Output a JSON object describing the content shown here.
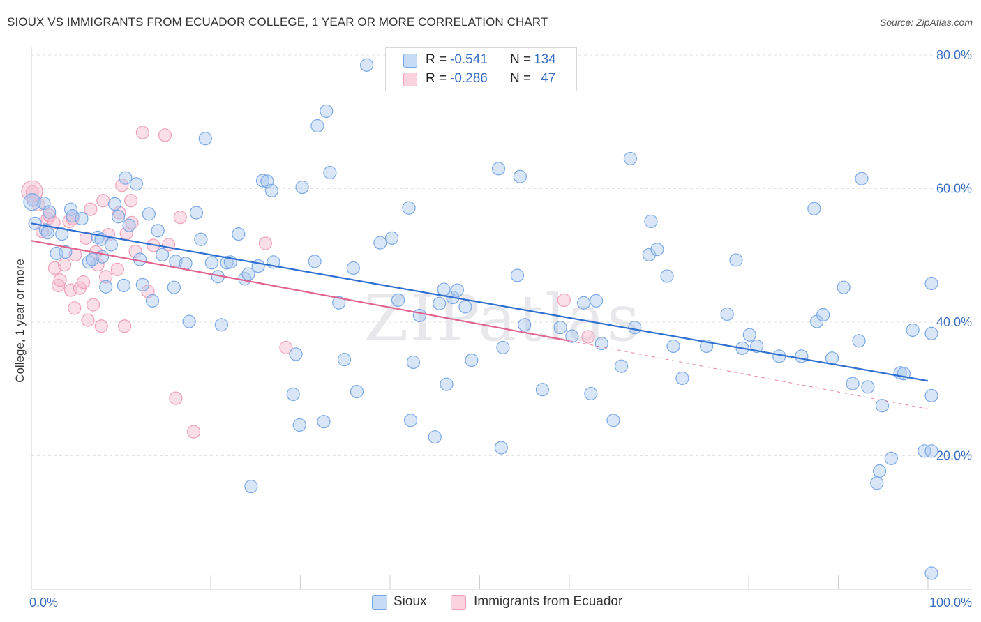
{
  "title": "SIOUX VS IMMIGRANTS FROM ECUADOR COLLEGE, 1 YEAR OR MORE CORRELATION CHART",
  "source": "Source: ZipAtlas.com",
  "watermark": "ZIPatlas",
  "legend": {
    "rows": [
      {
        "r_label": "R =",
        "r_value": "-0.541",
        "n_label": "N =",
        "n_value": "134",
        "color": "#a8c8f0"
      },
      {
        "r_label": "R =",
        "r_value": "-0.286",
        "n_label": "N =",
        "n_value": "47",
        "color": "#f5b8cb"
      }
    ]
  },
  "bottom_legend": [
    {
      "label": "Sioux",
      "color": "#a8c8f0"
    },
    {
      "label": "Immigrants from Ecuador",
      "color": "#f5b8cb"
    }
  ],
  "chart_data": {
    "type": "scatter",
    "title": "SIOUX VS IMMIGRANTS FROM ECUADOR COLLEGE, 1 YEAR OR MORE CORRELATION CHART",
    "xlabel": "",
    "ylabel": "College, 1 year or more",
    "x_ticks": [
      "0.0%",
      "100.0%"
    ],
    "y_ticks": [
      "20.0%",
      "40.0%",
      "60.0%",
      "80.0%"
    ],
    "xlim": [
      0,
      100
    ],
    "ylim": [
      0,
      82
    ],
    "grid": true,
    "legend_position": "top-center",
    "series": [
      {
        "name": "Sioux",
        "color": "#7aa8e6",
        "trend": {
          "x0": 0,
          "y0": 54.8,
          "x1": 100,
          "y1": 31.2,
          "color": "#2f6fd0"
        },
        "points": [
          [
            0.2,
            58.3
          ],
          [
            0.4,
            54.8
          ],
          [
            1.4,
            57.8
          ],
          [
            1.6,
            53.8
          ],
          [
            1.8,
            53.4
          ],
          [
            2.0,
            56.5
          ],
          [
            2.8,
            50.3
          ],
          [
            3.4,
            53.2
          ],
          [
            3.8,
            50.5
          ],
          [
            4.4,
            56.9
          ],
          [
            4.6,
            55.9
          ],
          [
            5.6,
            55.5
          ],
          [
            6.4,
            49.0
          ],
          [
            6.8,
            49.4
          ],
          [
            7.4,
            52.7
          ],
          [
            7.8,
            52.4
          ],
          [
            7.9,
            49.8
          ],
          [
            8.3,
            45.3
          ],
          [
            8.9,
            51.6
          ],
          [
            9.3,
            57.7
          ],
          [
            9.7,
            55.8
          ],
          [
            10.3,
            45.5
          ],
          [
            10.5,
            61.6
          ],
          [
            10.9,
            54.5
          ],
          [
            11.7,
            60.7
          ],
          [
            12.1,
            49.4
          ],
          [
            12.4,
            45.6
          ],
          [
            13.1,
            56.2
          ],
          [
            13.5,
            43.2
          ],
          [
            14.1,
            53.7
          ],
          [
            14.6,
            50.1
          ],
          [
            15.9,
            45.2
          ],
          [
            16.1,
            49.1
          ],
          [
            17.2,
            48.8
          ],
          [
            17.6,
            40.1
          ],
          [
            18.4,
            56.4
          ],
          [
            18.9,
            52.4
          ],
          [
            19.4,
            67.5
          ],
          [
            20.1,
            48.9
          ],
          [
            20.8,
            46.8
          ],
          [
            21.2,
            39.6
          ],
          [
            21.8,
            48.9
          ],
          [
            22.2,
            49.0
          ],
          [
            23.1,
            53.2
          ],
          [
            23.8,
            46.5
          ],
          [
            24.2,
            47.2
          ],
          [
            24.5,
            15.4
          ],
          [
            25.3,
            48.4
          ],
          [
            25.8,
            61.2
          ],
          [
            26.3,
            61.1
          ],
          [
            26.8,
            59.7
          ],
          [
            27.0,
            49.0
          ],
          [
            29.2,
            29.2
          ],
          [
            29.5,
            35.2
          ],
          [
            29.9,
            24.6
          ],
          [
            30.2,
            60.2
          ],
          [
            31.6,
            49.1
          ],
          [
            31.9,
            69.4
          ],
          [
            32.6,
            25.1
          ],
          [
            32.9,
            71.6
          ],
          [
            33.3,
            62.4
          ],
          [
            34.3,
            42.9
          ],
          [
            34.9,
            34.4
          ],
          [
            35.9,
            48.1
          ],
          [
            36.3,
            29.6
          ],
          [
            37.4,
            78.5
          ],
          [
            38.9,
            51.9
          ],
          [
            40.2,
            52.6
          ],
          [
            40.9,
            43.3
          ],
          [
            42.1,
            57.1
          ],
          [
            42.3,
            25.3
          ],
          [
            42.6,
            34.0
          ],
          [
            43.3,
            41.0
          ],
          [
            45.0,
            22.8
          ],
          [
            45.5,
            42.8
          ],
          [
            46.0,
            44.9
          ],
          [
            46.3,
            30.7
          ],
          [
            47.0,
            43.7
          ],
          [
            47.5,
            44.8
          ],
          [
            48.4,
            42.3
          ],
          [
            49.1,
            34.3
          ],
          [
            52.1,
            63.0
          ],
          [
            52.4,
            21.2
          ],
          [
            52.6,
            36.2
          ],
          [
            54.2,
            47.0
          ],
          [
            54.5,
            61.8
          ],
          [
            55.0,
            39.6
          ],
          [
            57.0,
            29.9
          ],
          [
            59.0,
            39.2
          ],
          [
            60.3,
            37.9
          ],
          [
            61.6,
            42.9
          ],
          [
            62.4,
            29.3
          ],
          [
            63.6,
            36.8
          ],
          [
            64.9,
            25.3
          ],
          [
            65.8,
            33.4
          ],
          [
            66.8,
            64.5
          ],
          [
            67.3,
            39.2
          ],
          [
            68.9,
            50.1
          ],
          [
            69.1,
            55.1
          ],
          [
            69.8,
            50.9
          ],
          [
            70.9,
            46.9
          ],
          [
            71.6,
            36.4
          ],
          [
            72.6,
            31.6
          ],
          [
            75.3,
            36.4
          ],
          [
            77.6,
            41.2
          ],
          [
            78.6,
            49.3
          ],
          [
            79.3,
            36.1
          ],
          [
            80.1,
            38.1
          ],
          [
            80.9,
            36.4
          ],
          [
            83.4,
            34.9
          ],
          [
            85.9,
            34.9
          ],
          [
            87.3,
            57.0
          ],
          [
            87.6,
            40.1
          ],
          [
            88.3,
            41.1
          ],
          [
            89.3,
            34.6
          ],
          [
            90.6,
            45.2
          ],
          [
            91.6,
            30.8
          ],
          [
            92.3,
            37.2
          ],
          [
            92.6,
            61.5
          ],
          [
            93.3,
            30.3
          ],
          [
            94.3,
            15.9
          ],
          [
            94.6,
            17.7
          ],
          [
            94.9,
            27.5
          ],
          [
            95.9,
            19.6
          ],
          [
            96.9,
            32.4
          ],
          [
            97.3,
            32.3
          ],
          [
            98.3,
            38.8
          ],
          [
            99.6,
            20.7
          ],
          [
            100.9,
            20.7
          ],
          [
            101.3,
            38.3
          ],
          [
            102.3,
            2.4
          ],
          [
            102.6,
            45.8
          ],
          [
            103.0,
            29.0
          ],
          [
            63.0,
            43.2
          ]
        ]
      },
      {
        "name": "Immigrants from Ecuador",
        "color": "#f0a0b8",
        "trend": {
          "x0": 0,
          "y0": 52.2,
          "x1": 60,
          "y1": 37.2,
          "x2": 100,
          "y2": 27.0,
          "color": "#e0628f"
        },
        "points": [
          [
            0.1,
            59.5
          ],
          [
            0.8,
            57.6
          ],
          [
            1.2,
            53.6
          ],
          [
            1.8,
            55.5
          ],
          [
            2.0,
            56.0
          ],
          [
            2.5,
            54.9
          ],
          [
            2.6,
            48.1
          ],
          [
            3.0,
            45.5
          ],
          [
            3.2,
            46.3
          ],
          [
            3.7,
            48.6
          ],
          [
            4.2,
            55.1
          ],
          [
            4.4,
            44.8
          ],
          [
            4.6,
            55.5
          ],
          [
            4.8,
            42.1
          ],
          [
            4.9,
            50.1
          ],
          [
            5.4,
            45.1
          ],
          [
            5.8,
            46.0
          ],
          [
            6.1,
            52.6
          ],
          [
            6.3,
            40.3
          ],
          [
            6.6,
            56.9
          ],
          [
            6.9,
            42.6
          ],
          [
            7.2,
            50.5
          ],
          [
            7.4,
            48.6
          ],
          [
            7.8,
            39.4
          ],
          [
            8.0,
            58.2
          ],
          [
            8.3,
            46.8
          ],
          [
            8.6,
            53.1
          ],
          [
            9.6,
            47.9
          ],
          [
            9.8,
            56.4
          ],
          [
            10.1,
            60.5
          ],
          [
            10.4,
            39.4
          ],
          [
            10.6,
            53.3
          ],
          [
            11.1,
            58.2
          ],
          [
            11.2,
            54.9
          ],
          [
            11.6,
            50.6
          ],
          [
            12.4,
            68.4
          ],
          [
            13.0,
            44.6
          ],
          [
            13.6,
            51.5
          ],
          [
            14.9,
            68.0
          ],
          [
            15.3,
            51.6
          ],
          [
            16.1,
            28.6
          ],
          [
            16.6,
            55.7
          ],
          [
            18.1,
            23.6
          ],
          [
            26.1,
            51.8
          ],
          [
            28.4,
            36.2
          ],
          [
            59.4,
            43.3
          ],
          [
            62.1,
            37.8
          ]
        ]
      }
    ]
  }
}
